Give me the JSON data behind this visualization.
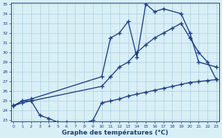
{
  "line1_x": [
    0,
    1,
    2,
    10,
    11,
    12,
    13,
    14,
    15,
    16,
    17,
    19,
    20,
    21,
    23
  ],
  "line1_y": [
    24.5,
    25.0,
    25.2,
    27.5,
    31.5,
    32.0,
    33.2,
    29.5,
    35.0,
    34.2,
    34.5,
    34.0,
    32.0,
    29.0,
    28.5
  ],
  "line2_x": [
    0,
    1,
    2,
    10,
    11,
    12,
    13,
    14,
    15,
    16,
    17,
    18,
    19,
    20,
    21,
    22,
    23
  ],
  "line2_y": [
    24.5,
    24.8,
    25.0,
    26.5,
    27.5,
    28.5,
    29.0,
    30.0,
    30.8,
    31.5,
    32.0,
    32.5,
    33.0,
    31.5,
    30.0,
    29.0,
    27.2
  ],
  "line3_x": [
    0,
    1,
    2,
    3,
    4,
    5,
    6,
    7,
    8,
    9,
    10,
    11,
    12,
    13,
    14,
    15,
    16,
    17,
    18,
    19,
    20,
    21,
    22,
    23
  ],
  "line3_y": [
    24.5,
    25.0,
    25.0,
    23.5,
    23.2,
    22.8,
    22.8,
    22.7,
    22.7,
    23.0,
    24.8,
    25.0,
    25.2,
    25.5,
    25.7,
    25.9,
    26.1,
    26.3,
    26.5,
    26.7,
    26.9,
    27.0,
    27.1,
    27.2
  ],
  "ylim": [
    23,
    35
  ],
  "xlim": [
    0,
    23
  ],
  "yticks": [
    23,
    24,
    25,
    26,
    27,
    28,
    29,
    30,
    31,
    32,
    33,
    34,
    35
  ],
  "xticks": [
    0,
    1,
    2,
    3,
    4,
    5,
    6,
    7,
    8,
    9,
    10,
    11,
    12,
    13,
    14,
    15,
    16,
    17,
    18,
    19,
    20,
    21,
    22,
    23
  ],
  "xlabel": "Graphe des températures (°C)",
  "line_color": "#1a3a8c",
  "bg_color": "#d8eff5",
  "grid_color": "#aacfdf",
  "marker": "+",
  "linewidth": 1.0,
  "markersize": 4,
  "markeredgewidth": 1.0
}
